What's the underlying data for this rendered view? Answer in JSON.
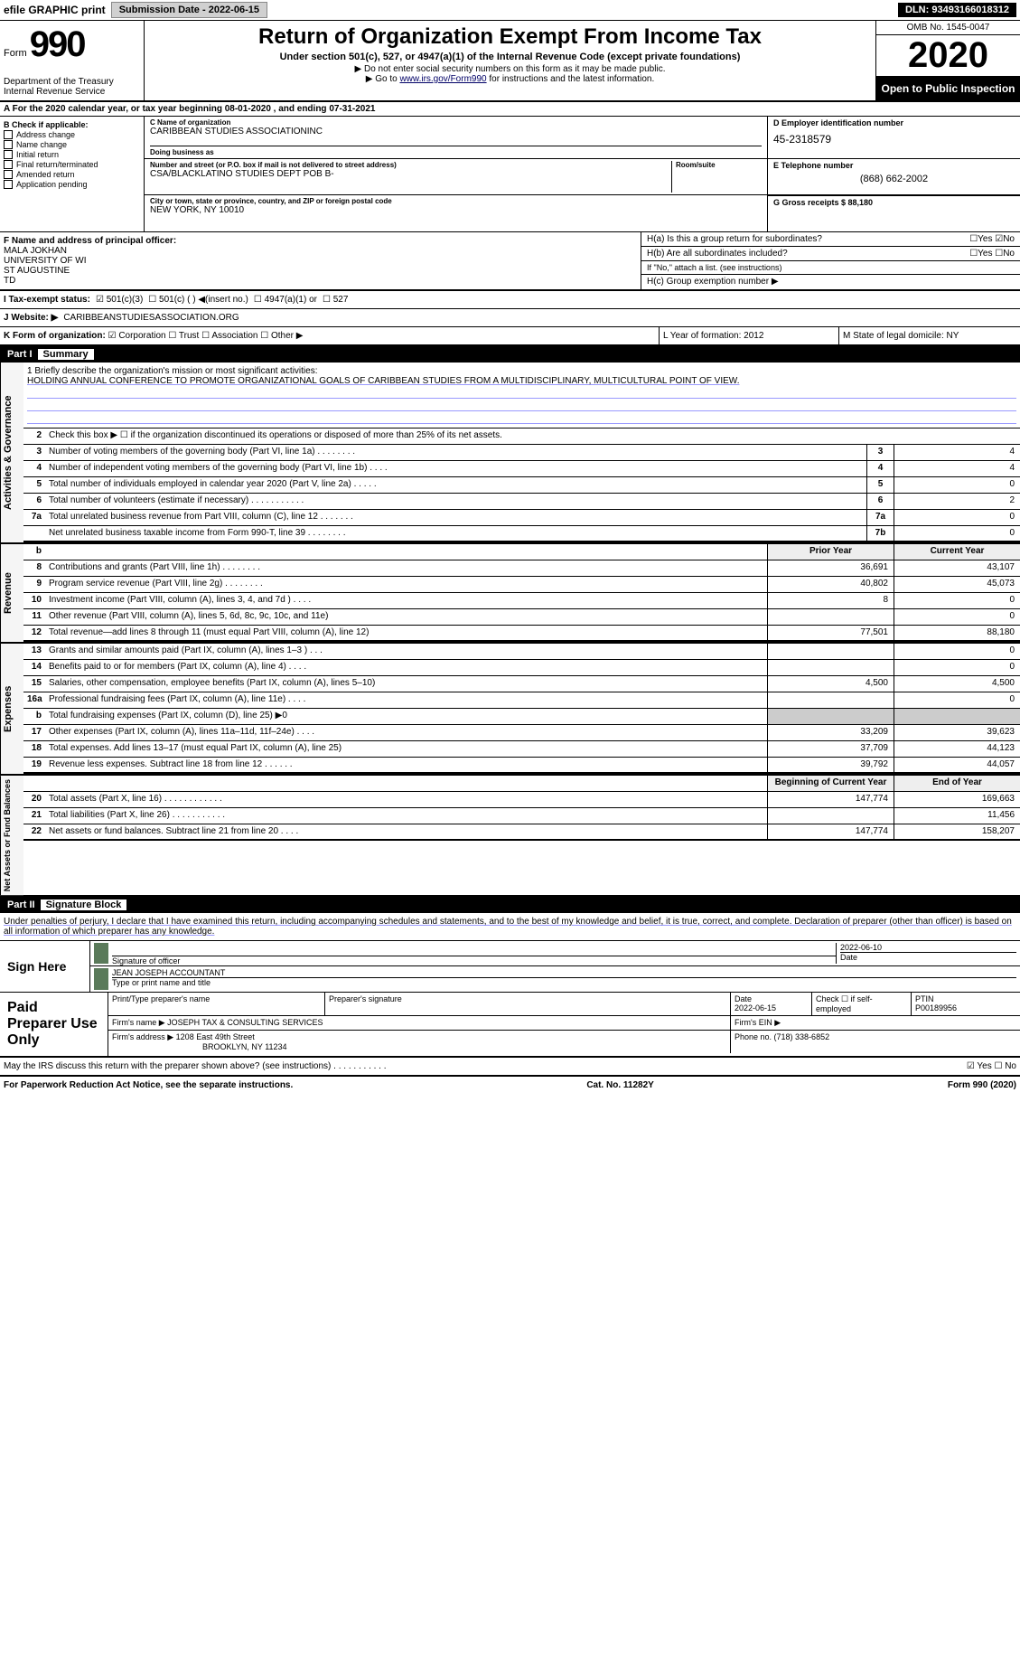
{
  "topbar": {
    "efile": "efile GRAPHIC print",
    "submission_label": "Submission Date - 2022-06-15",
    "dln": "DLN: 93493166018312"
  },
  "header": {
    "form_label": "Form",
    "form_number": "990",
    "dept": "Department of the Treasury Internal Revenue Service",
    "title": "Return of Organization Exempt From Income Tax",
    "subtitle": "Under section 501(c), 527, or 4947(a)(1) of the Internal Revenue Code (except private foundations)",
    "note1": "▶ Do not enter social security numbers on this form as it may be made public.",
    "note2_pre": "▶ Go to ",
    "note2_link": "www.irs.gov/Form990",
    "note2_post": " for instructions and the latest information.",
    "omb": "OMB No. 1545-0047",
    "year": "2020",
    "open_public": "Open to Public Inspection"
  },
  "row_a": "A For the 2020 calendar year, or tax year beginning 08-01-2020  , and ending 07-31-2021",
  "col_b": {
    "heading": "B Check if applicable:",
    "items": [
      "Address change",
      "Name change",
      "Initial return",
      "Final return/terminated",
      "Amended return",
      "Application pending"
    ]
  },
  "info": {
    "c_label": "C Name of organization",
    "c_name": "CARIBBEAN STUDIES ASSOCIATIONINC",
    "dba_label": "Doing business as",
    "street_label": "Number and street (or P.O. box if mail is not delivered to street address)",
    "street": "CSA/BLACKLATINO STUDIES DEPT POB B-",
    "room_label": "Room/suite",
    "city_label": "City or town, state or province, country, and ZIP or foreign postal code",
    "city": "NEW YORK, NY  10010",
    "d_label": "D Employer identification number",
    "d_val": "45-2318579",
    "e_label": "E Telephone number",
    "e_val": "(868) 662-2002",
    "g_label": "G Gross receipts $ 88,180"
  },
  "fgh": {
    "f_label": "F  Name and address of principal officer:",
    "f_name": "MALA JOKHAN",
    "f_addr1": "UNIVERSITY OF WI",
    "f_addr2": "ST AUGUSTINE",
    "f_addr3": "TD",
    "ha": "H(a)  Is this a group return for subordinates?",
    "hb": "H(b)  Are all subordinates included?",
    "hb_note": "If \"No,\" attach a list. (see instructions)",
    "hc": "H(c)  Group exemption number ▶"
  },
  "row_i": {
    "label": "I    Tax-exempt status:",
    "opt1": "501(c)(3)",
    "opt2": "501(c) (  ) ◀(insert no.)",
    "opt3": "4947(a)(1) or",
    "opt4": "527"
  },
  "row_j": {
    "label": "J   Website: ▶",
    "val": "CARIBBEANSTUDIESASSOCIATION.ORG"
  },
  "row_k": {
    "label": "K Form of organization:",
    "opts": [
      "Corporation",
      "Trust",
      "Association",
      "Other ▶"
    ],
    "l": "L Year of formation: 2012",
    "m": "M State of legal domicile: NY"
  },
  "parts": {
    "p1": "Part I",
    "p1_title": "Summary",
    "p2": "Part II",
    "p2_title": "Signature Block"
  },
  "summary": {
    "line1_label": "1  Briefly describe the organization's mission or most significant activities:",
    "line1_text": "HOLDING ANNUAL CONFERENCE TO PROMOTE ORGANIZATIONAL GOALS OF CARIBBEAN STUDIES FROM A MULTIDISCIPLINARY, MULTICULTURAL POINT OF VIEW.",
    "line2": "Check this box ▶ ☐ if the organization discontinued its operations or disposed of more than 25% of its net assets.",
    "sections": {
      "governance": "Activities & Governance",
      "revenue": "Revenue",
      "expenses": "Expenses",
      "netassets": "Net Assets or Fund Balances"
    },
    "rows_gov": [
      {
        "n": "3",
        "t": "Number of voting members of the governing body (Part VI, line 1a)  .   .   .   .   .   .   .   .",
        "b": "3",
        "v": "4"
      },
      {
        "n": "4",
        "t": "Number of independent voting members of the governing body (Part VI, line 1b)  .   .   .   .",
        "b": "4",
        "v": "4"
      },
      {
        "n": "5",
        "t": "Total number of individuals employed in calendar year 2020 (Part V, line 2a)  .   .   .   .   .",
        "b": "5",
        "v": "0"
      },
      {
        "n": "6",
        "t": "Total number of volunteers (estimate if necessary)   .   .   .   .   .   .   .   .   .   .   .",
        "b": "6",
        "v": "2"
      },
      {
        "n": "7a",
        "t": "Total unrelated business revenue from Part VIII, column (C), line 12  .   .   .   .   .   .   .",
        "b": "7a",
        "v": "0"
      },
      {
        "n": "",
        "t": "Net unrelated business taxable income from Form 990-T, line 39  .   .   .   .   .   .   .   .",
        "b": "7b",
        "v": "0"
      }
    ],
    "col_hdr_prior": "Prior Year",
    "col_hdr_curr": "Current Year",
    "rows_rev": [
      {
        "n": "8",
        "t": "Contributions and grants (Part VIII, line 1h)  .   .   .   .   .   .   .   .",
        "p": "36,691",
        "v": "43,107"
      },
      {
        "n": "9",
        "t": "Program service revenue (Part VIII, line 2g)  .   .   .   .   .   .   .   .",
        "p": "40,802",
        "v": "45,073"
      },
      {
        "n": "10",
        "t": "Investment income (Part VIII, column (A), lines 3, 4, and 7d )  .   .   .   .",
        "p": "8",
        "v": "0"
      },
      {
        "n": "11",
        "t": "Other revenue (Part VIII, column (A), lines 5, 6d, 8c, 9c, 10c, and 11e)",
        "p": "",
        "v": "0"
      },
      {
        "n": "12",
        "t": "Total revenue—add lines 8 through 11 (must equal Part VIII, column (A), line 12)",
        "p": "77,501",
        "v": "88,180"
      }
    ],
    "rows_exp": [
      {
        "n": "13",
        "t": "Grants and similar amounts paid (Part IX, column (A), lines 1–3 )  .   .   .",
        "p": "",
        "v": "0"
      },
      {
        "n": "14",
        "t": "Benefits paid to or for members (Part IX, column (A), line 4)  .   .   .   .",
        "p": "",
        "v": "0"
      },
      {
        "n": "15",
        "t": "Salaries, other compensation, employee benefits (Part IX, column (A), lines 5–10)",
        "p": "4,500",
        "v": "4,500"
      },
      {
        "n": "16a",
        "t": "Professional fundraising fees (Part IX, column (A), line 11e)  .   .   .   .",
        "p": "",
        "v": "0"
      },
      {
        "n": "b",
        "t": "Total fundraising expenses (Part IX, column (D), line 25) ▶0",
        "p": "—",
        "v": "—"
      },
      {
        "n": "17",
        "t": "Other expenses (Part IX, column (A), lines 11a–11d, 11f–24e)  .   .   .   .",
        "p": "33,209",
        "v": "39,623"
      },
      {
        "n": "18",
        "t": "Total expenses. Add lines 13–17 (must equal Part IX, column (A), line 25)",
        "p": "37,709",
        "v": "44,123"
      },
      {
        "n": "19",
        "t": "Revenue less expenses. Subtract line 18 from line 12  .   .   .   .   .   .",
        "p": "39,792",
        "v": "44,057"
      }
    ],
    "col_hdr_begin": "Beginning of Current Year",
    "col_hdr_end": "End of Year",
    "rows_net": [
      {
        "n": "20",
        "t": "Total assets (Part X, line 16)  .   .   .   .   .   .   .   .   .   .   .   .",
        "p": "147,774",
        "v": "169,663"
      },
      {
        "n": "21",
        "t": "Total liabilities (Part X, line 26)  .   .   .   .   .   .   .   .   .   .   .",
        "p": "",
        "v": "11,456"
      },
      {
        "n": "22",
        "t": "Net assets or fund balances. Subtract line 21 from line 20  .   .   .   .",
        "p": "147,774",
        "v": "158,207"
      }
    ]
  },
  "sig": {
    "intro": "Under penalties of perjury, I declare that I have examined this return, including accompanying schedules and statements, and to the best of my knowledge and belief, it is true, correct, and complete. Declaration of preparer (other than officer) is based on all information of which preparer has any knowledge.",
    "sign_here": "Sign Here",
    "officer_label": "Signature of officer",
    "officer_date": "2022-06-10",
    "date_label": "Date",
    "name_label": "Type or print name and title",
    "name_val": "JEAN JOSEPH  ACCOUNTANT",
    "paid_label": "Paid Preparer Use Only",
    "prep_name_label": "Print/Type preparer's name",
    "prep_sig_label": "Preparer's signature",
    "prep_date_label": "Date",
    "prep_date": "2022-06-15",
    "check_se": "Check ☐ if self-employed",
    "ptin_label": "PTIN",
    "ptin": "P00189956",
    "firm_name_label": "Firm's name    ▶",
    "firm_name": "JOSEPH TAX & CONSULTING SERVICES",
    "firm_ein_label": "Firm's EIN ▶",
    "firm_addr_label": "Firm's address ▶",
    "firm_addr1": "1208 East 49th Street",
    "firm_addr2": "BROOKLYN, NY  11234",
    "phone_label": "Phone no. (718) 338-6852",
    "discuss": "May the IRS discuss this return with the preparer shown above? (see instructions)  .   .   .   .   .   .   .   .   .   .   .",
    "discuss_yes": "☑ Yes  ☐ No"
  },
  "footer": {
    "left": "For Paperwork Reduction Act Notice, see the separate instructions.",
    "mid": "Cat. No. 11282Y",
    "right": "Form 990 (2020)"
  },
  "colors": {
    "black": "#000000",
    "white": "#ffffff",
    "link": "#003366",
    "gray_btn": "#d0d0d0",
    "side_bg": "#f5f5f5",
    "arrow_green": "#5a7a5a"
  }
}
